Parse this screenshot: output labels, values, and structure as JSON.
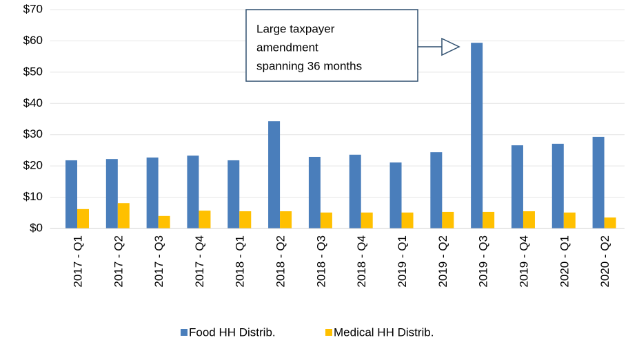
{
  "chart_data": {
    "type": "bar",
    "categories": [
      "2017 - Q1",
      "2017 - Q2",
      "2017 - Q3",
      "2017 - Q4",
      "2018 - Q1",
      "2018 - Q2",
      "2018 - Q3",
      "2018 - Q4",
      "2019 - Q1",
      "2019 - Q2",
      "2019 - Q3",
      "2019 - Q4",
      "2020 - Q1",
      "2020 - Q2"
    ],
    "series": [
      {
        "name": "Food HH Distrib.",
        "color": "#4a7ebb",
        "values": [
          21.8,
          22.2,
          22.7,
          23.3,
          21.8,
          34.3,
          22.9,
          23.6,
          21.1,
          24.4,
          59.4,
          26.6,
          27.1,
          29.3
        ]
      },
      {
        "name": "Medical HH Distrib.",
        "color": "#ffc000",
        "values": [
          6.2,
          8.1,
          4.0,
          5.7,
          5.5,
          5.5,
          5.1,
          5.1,
          5.1,
          5.3,
          5.3,
          5.5,
          5.1,
          3.5
        ]
      }
    ],
    "ylim": [
      0,
      70
    ],
    "yticks": [
      {
        "value": 0,
        "label": "$0"
      },
      {
        "value": 10,
        "label": "$10"
      },
      {
        "value": 20,
        "label": "$20"
      },
      {
        "value": 30,
        "label": "$30"
      },
      {
        "value": 40,
        "label": "$40"
      },
      {
        "value": 50,
        "label": "$50"
      },
      {
        "value": 60,
        "label": "$60"
      },
      {
        "value": 70,
        "label": "$70"
      }
    ],
    "grid": true,
    "legend": "bottom",
    "annotation": [
      "Large taxpayer",
      "amendment",
      "spanning 36 months"
    ]
  }
}
